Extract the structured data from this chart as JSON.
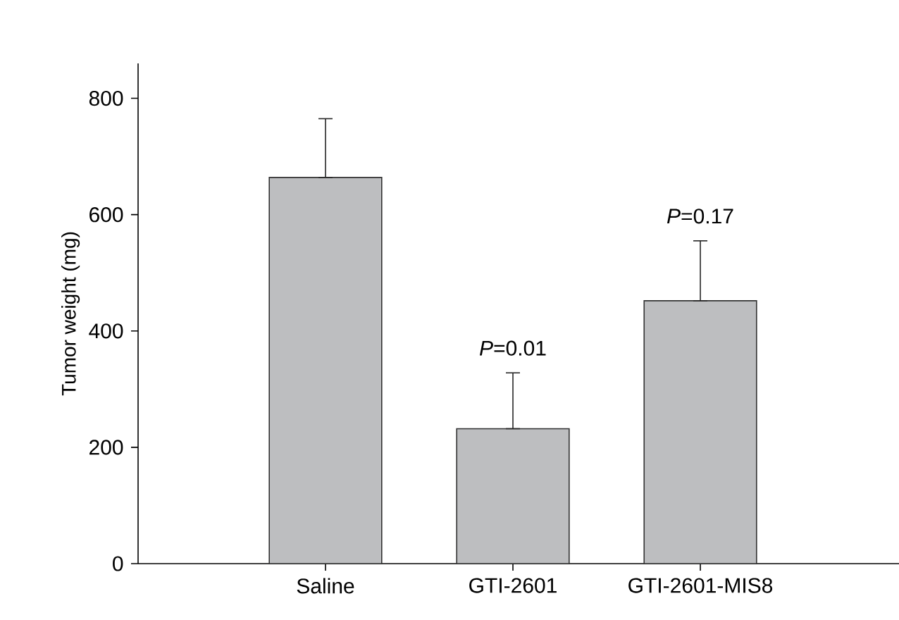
{
  "chart_data": {
    "type": "bar",
    "ylabel": "Tumor weight (mg)",
    "categories": [
      "Saline",
      "GTI-2601",
      "GTI-2601-MIS8"
    ],
    "values": [
      664,
      232,
      452
    ],
    "errors": [
      [
        664,
        765
      ],
      [
        232,
        328
      ],
      [
        452,
        555
      ]
    ],
    "color": "#bdbec0",
    "ylim": [
      0,
      860
    ],
    "yticks": [
      0,
      200,
      400,
      600,
      800
    ],
    "annotations": [
      {
        "text": "*P*=0.01",
        "x": "GTI-2601",
        "y": 328
      },
      {
        "text": "*P*=0.17",
        "x": "GTI-2601-MIS8",
        "y": 555
      }
    ]
  }
}
